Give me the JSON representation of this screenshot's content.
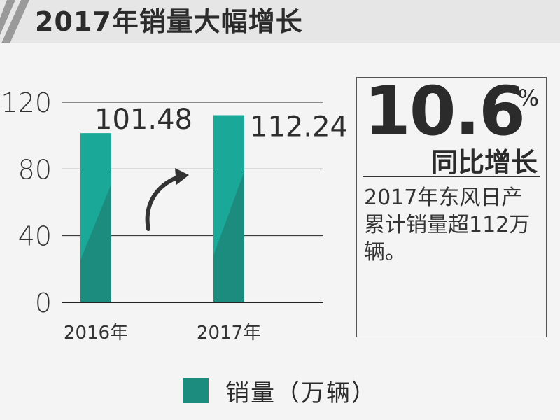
{
  "header": {
    "title": "2017年销量大幅增长"
  },
  "chart_data": {
    "type": "bar",
    "categories": [
      "2016年",
      "2017年"
    ],
    "series": [
      {
        "name": "销量（万辆）",
        "values": [
          101.48,
          112.24
        ]
      }
    ],
    "data_labels": [
      "101.48",
      "112.24"
    ],
    "ylim": [
      0,
      120
    ],
    "yticks": [
      0,
      40,
      80,
      120
    ],
    "grid": true,
    "legend_position": "bottom",
    "colors": {
      "bar_top": "#1aa899",
      "bar_bottom": "#1b8c7e"
    }
  },
  "callout": {
    "value": "10.6",
    "unit": "%",
    "label": "同比增长",
    "text": "2017年东风日产累计销量超112万辆。"
  },
  "legend": {
    "label": "销量（万辆）"
  }
}
